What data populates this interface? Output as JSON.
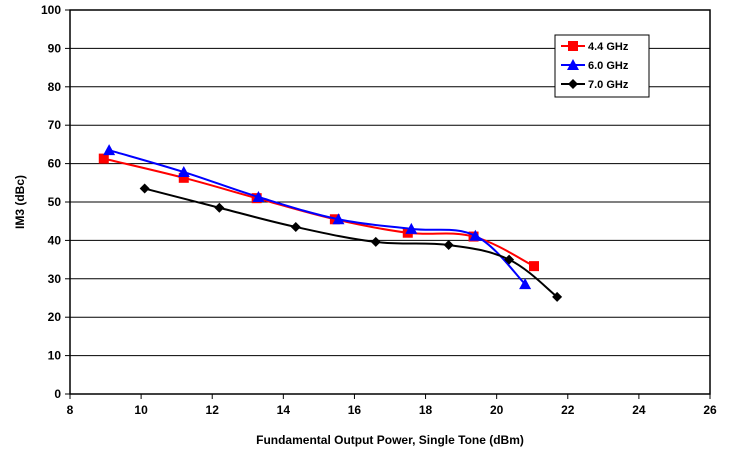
{
  "chart_data": {
    "type": "line",
    "title": "",
    "xlabel": "Fundamental Output Power, Single Tone (dBm)",
    "ylabel": "IM3 (dBc)",
    "xlim": [
      8,
      26
    ],
    "ylim": [
      0,
      100
    ],
    "x_ticks": [
      8,
      10,
      12,
      14,
      16,
      18,
      20,
      22,
      24,
      26
    ],
    "y_ticks": [
      0,
      10,
      20,
      30,
      40,
      50,
      60,
      70,
      80,
      90,
      100
    ],
    "grid": "horizontal",
    "legend_position": "top-right",
    "series": [
      {
        "name": "4.4 GHz",
        "color": "#ff0000",
        "marker": "square",
        "x": [
          8.95,
          11.2,
          13.25,
          15.45,
          17.5,
          19.35,
          21.05
        ],
        "y": [
          61.3,
          56.3,
          51.0,
          45.5,
          42.0,
          41.0,
          33.3
        ]
      },
      {
        "name": "6.0 GHz",
        "color": "#0000ff",
        "marker": "triangle",
        "x": [
          9.1,
          11.2,
          13.3,
          15.55,
          17.6,
          19.4,
          20.8
        ],
        "y": [
          63.5,
          57.8,
          51.3,
          45.5,
          43.0,
          41.2,
          28.6
        ]
      },
      {
        "name": "7.0 GHz",
        "color": "#000000",
        "marker": "diamond",
        "x": [
          10.1,
          12.2,
          14.35,
          16.6,
          18.65,
          20.35,
          21.7
        ],
        "y": [
          53.5,
          48.5,
          43.5,
          39.6,
          38.8,
          35.0,
          25.3
        ]
      }
    ]
  }
}
